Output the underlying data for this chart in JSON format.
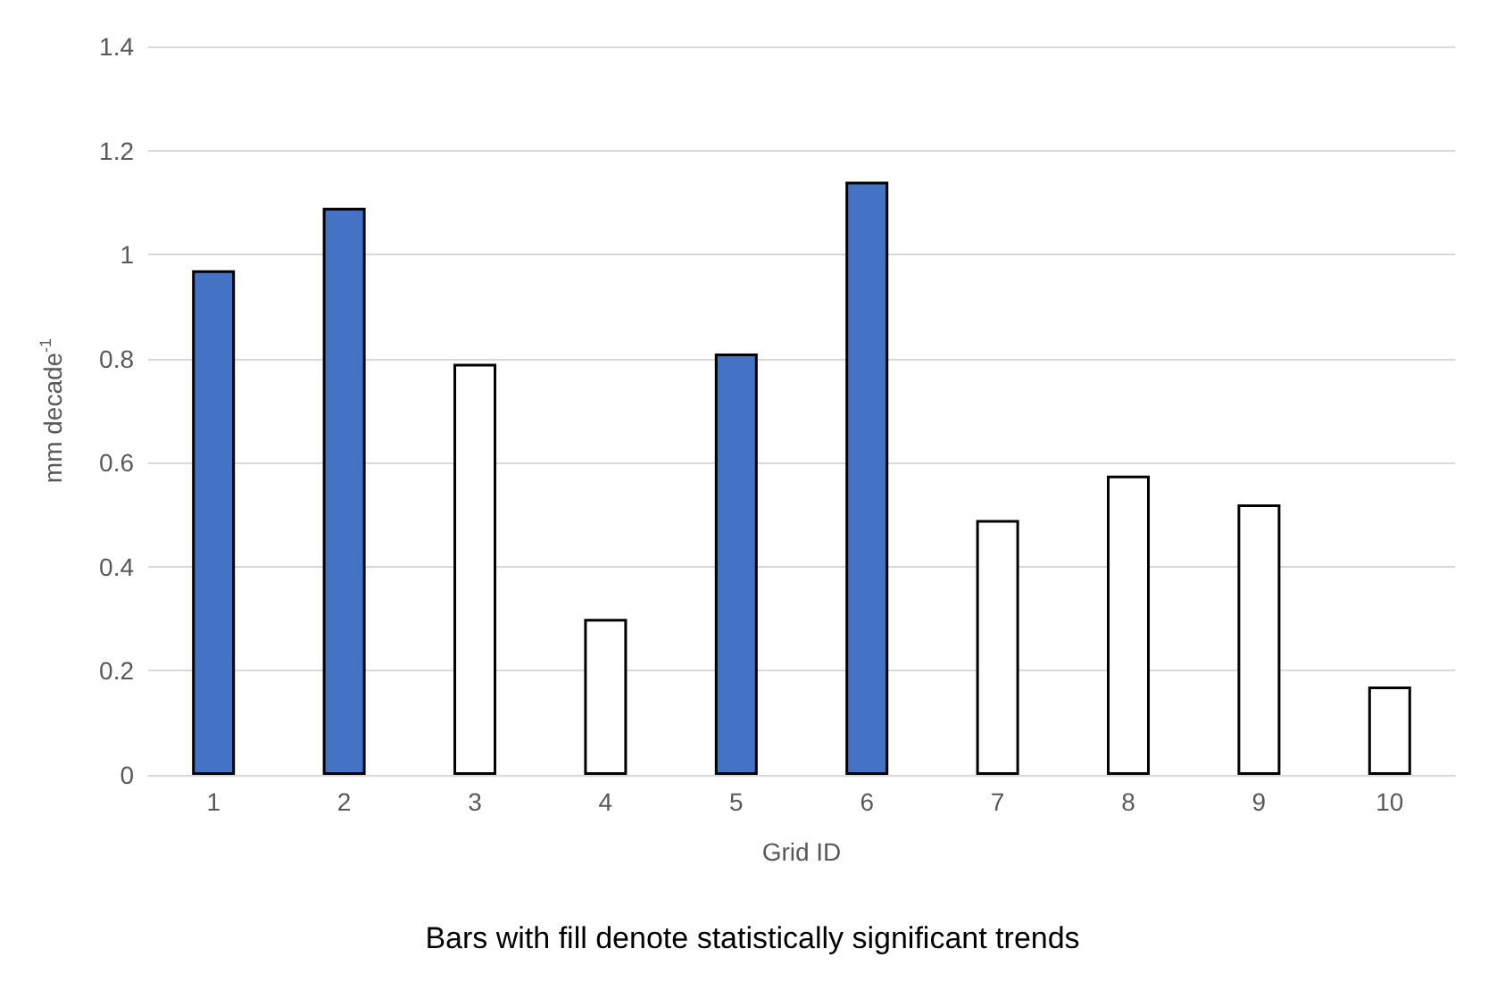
{
  "chart_data": {
    "type": "bar",
    "xlabel": "Grid ID",
    "ylabel": "mm decade$^{-1}$",
    "categories": [
      "1",
      "2",
      "3",
      "4",
      "5",
      "6",
      "7",
      "8",
      "9",
      "10"
    ],
    "values": [
      0.97,
      1.09,
      0.79,
      0.3,
      0.81,
      1.14,
      0.49,
      0.575,
      0.52,
      0.17
    ],
    "colors": [
      "#4472c4",
      "#4472c4",
      "#ffffff",
      "#ffffff",
      "#4472c4",
      "#4472c4",
      "#ffffff",
      "#ffffff",
      "#ffffff",
      "#ffffff"
    ],
    "ylim": [
      0,
      1.4
    ],
    "yticks": [
      0,
      0.2,
      0.4,
      0.6,
      0.8,
      1,
      1.2,
      1.4
    ],
    "grid": "y",
    "annotations": [
      "Bars with fill denote statistically significant trends"
    ]
  }
}
